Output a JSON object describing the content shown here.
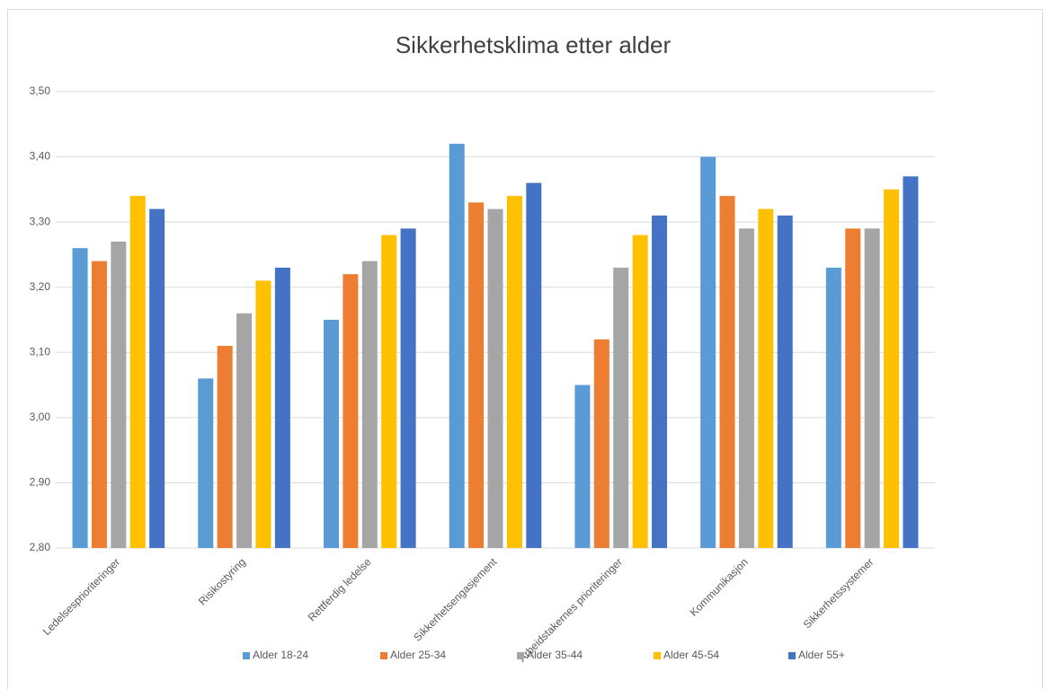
{
  "chart_data": {
    "type": "bar",
    "title": "Sikkerhetsklima etter alder",
    "categories": [
      "Ledelsesprioriteringer",
      "Risikostyring",
      "Rettferdig ledelse",
      "Sikkerhetsengasjement",
      "Arbeidstakernes prioriteringer",
      "Kommunikasjon",
      "Sikkerhetssystemer"
    ],
    "series": [
      {
        "name": "Alder 18-24",
        "color": "#5b9bd5",
        "values": [
          3.26,
          3.06,
          3.15,
          3.42,
          3.05,
          3.4,
          3.23
        ]
      },
      {
        "name": "Alder 25-34",
        "color": "#ed7d31",
        "values": [
          3.24,
          3.11,
          3.22,
          3.33,
          3.12,
          3.34,
          3.29
        ]
      },
      {
        "name": "Alder 35-44",
        "color": "#a5a5a5",
        "values": [
          3.27,
          3.16,
          3.24,
          3.32,
          3.23,
          3.29,
          3.29
        ]
      },
      {
        "name": "Alder 45-54",
        "color": "#ffc000",
        "values": [
          3.34,
          3.21,
          3.28,
          3.34,
          3.28,
          3.32,
          3.35
        ]
      },
      {
        "name": "Alder 55+",
        "color": "#4472c4",
        "values": [
          3.32,
          3.23,
          3.29,
          3.36,
          3.31,
          3.31,
          3.37
        ]
      }
    ],
    "ylim": [
      2.8,
      3.5
    ],
    "yticks": [
      {
        "value": 2.8,
        "label": "2,80"
      },
      {
        "value": 2.9,
        "label": "2,90"
      },
      {
        "value": 3.0,
        "label": "3,00"
      },
      {
        "value": 3.1,
        "label": "3,10"
      },
      {
        "value": 3.2,
        "label": "3,20"
      },
      {
        "value": 3.3,
        "label": "3,30"
      },
      {
        "value": 3.4,
        "label": "3,40"
      },
      {
        "value": 3.5,
        "label": "3,50"
      }
    ],
    "grid": true,
    "legend": "bottom"
  }
}
